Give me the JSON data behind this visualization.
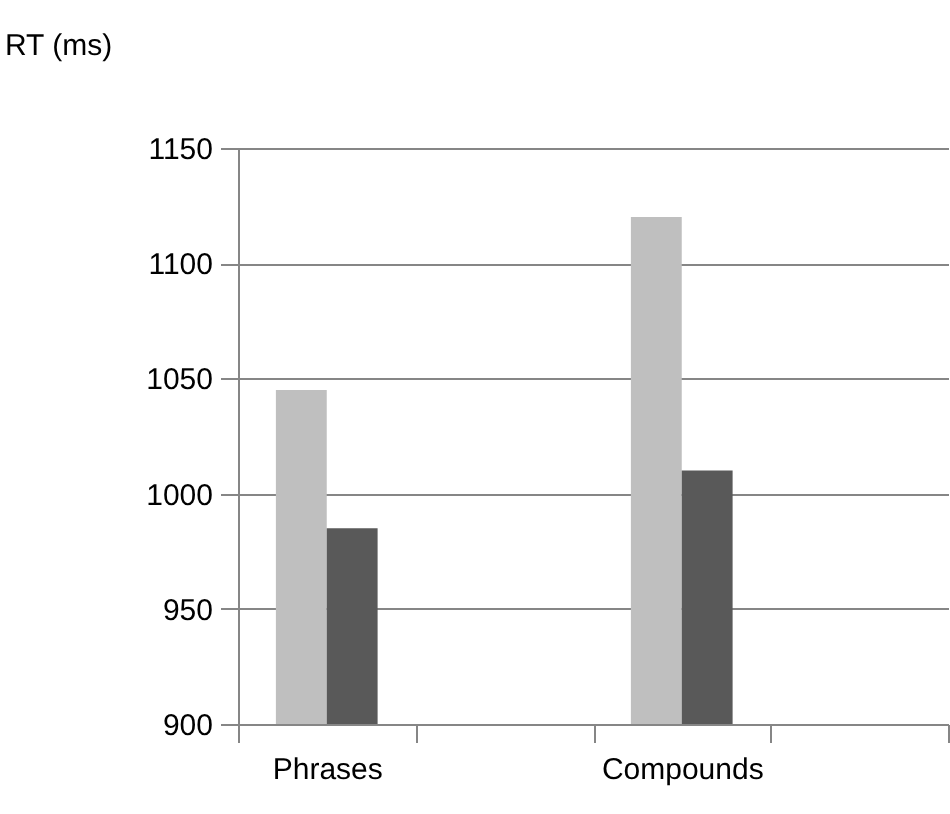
{
  "chart_data": {
    "type": "bar",
    "ylabel": "RT (ms)",
    "categories": [
      "Phrases",
      null,
      "Compounds",
      null
    ],
    "series": [
      {
        "color": "#bfbfbf",
        "values": [
          1045,
          null,
          1120,
          null
        ]
      },
      {
        "color": "#595959",
        "values": [
          985,
          null,
          1010,
          null
        ]
      }
    ],
    "ylim": [
      900,
      1150
    ],
    "yticks": [
      900,
      950,
      1000,
      1050,
      1100,
      1150
    ],
    "grid": "y",
    "legend": false
  }
}
